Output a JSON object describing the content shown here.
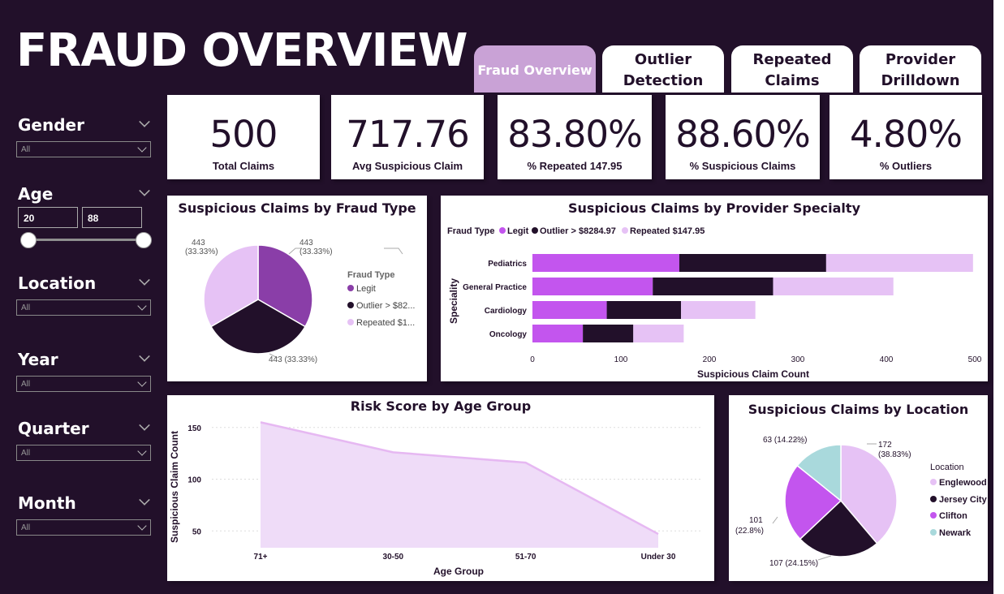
{
  "header": {
    "title": "FRAUD OVERVIEW"
  },
  "tabs": [
    {
      "label": "Fraud Overview"
    },
    {
      "label": "Outlier Detection"
    },
    {
      "label": "Repeated Claims"
    },
    {
      "label": "Provider Drilldown"
    }
  ],
  "slicers": {
    "gender": {
      "label": "Gender",
      "value": "All"
    },
    "age": {
      "label": "Age",
      "min": "20",
      "max": "88"
    },
    "location": {
      "label": "Location",
      "value": "All"
    },
    "year": {
      "label": "Year",
      "value": "All"
    },
    "quarter": {
      "label": "Quarter",
      "value": "All"
    },
    "month": {
      "label": "Month",
      "value": "All"
    }
  },
  "kpis": [
    {
      "value": "500",
      "label": "Total Claims"
    },
    {
      "value": "717.76",
      "label": "Avg Suspicious Claim"
    },
    {
      "value": "83.80%",
      "label": "% Repeated 147.95"
    },
    {
      "value": "88.60%",
      "label": "% Suspicious Claims"
    },
    {
      "value": "4.80%",
      "label": "% Outliers"
    }
  ],
  "colors": {
    "bg": "#22102a",
    "legit": "#8a3ea8",
    "outlier": "#22102a",
    "repeated": "#e6c2f5",
    "legit_bar": "#c355ee",
    "clifton": "#c355ee",
    "newark": "#a9d9dc",
    "area": "#efdcf8",
    "area_line": "#e6b8f2"
  },
  "chart_data": [
    {
      "type": "pie",
      "title": "Suspicious Claims by Fraud Type",
      "legend_title": "Fraud Type",
      "slices": [
        {
          "name": "Legit",
          "legend": "Legit",
          "value": 443,
          "label": "443",
          "pct": "(33.33%)"
        },
        {
          "name": "Outlier > $8284.97",
          "legend": "Outlier > $82...",
          "value": 443,
          "label": "443 (33.33%)",
          "pct": ""
        },
        {
          "name": "Repeated $147.95",
          "legend": "Repeated $1...",
          "value": 443,
          "label": "443",
          "pct": "(33.33%)"
        }
      ]
    },
    {
      "type": "bar",
      "title": "Suspicious Claims by Provider Specialty",
      "legend_title": "Fraud Type",
      "legend": [
        "Legit",
        "Outlier > $8284.97",
        "Repeated $147.95"
      ],
      "categories": [
        "Pediatrics",
        "General Practice",
        "Cardiology",
        "Oncology"
      ],
      "series": [
        {
          "name": "Legit",
          "values": [
            166,
            136,
            84,
            57
          ]
        },
        {
          "name": "Outlier > $8284.97",
          "values": [
            166,
            136,
            84,
            57
          ]
        },
        {
          "name": "Repeated $147.95",
          "values": [
            166,
            136,
            84,
            57
          ]
        }
      ],
      "xlim": [
        0,
        500
      ],
      "xticks": [
        "0",
        "100",
        "200",
        "300",
        "400",
        "500"
      ],
      "xlabel": "Suspicious Claim Count",
      "ylabel": "Speciality"
    },
    {
      "type": "area",
      "title": "Risk Score by Age Group",
      "categories": [
        "71+",
        "30-50",
        "51-70",
        "Under 30"
      ],
      "values": [
        155,
        126,
        116,
        47
      ],
      "ylim": [
        40,
        160
      ],
      "yticks": [
        "150",
        "100",
        "50"
      ],
      "xlabel": "Age Group",
      "ylabel": "Suspicious Claim Count"
    },
    {
      "type": "pie",
      "title": "Suspicious Claims by Location",
      "legend_title": "Location",
      "slices": [
        {
          "name": "Englewood",
          "value": 172,
          "label": "172",
          "pct": "(38.83%)"
        },
        {
          "name": "Jersey City",
          "value": 107,
          "label": "107 (24.15%)",
          "pct": ""
        },
        {
          "name": "Clifton",
          "value": 101,
          "label": "101",
          "pct": "(22.8%)"
        },
        {
          "name": "Newark",
          "value": 63,
          "label": "63 (14.22%)",
          "pct": ""
        }
      ]
    }
  ]
}
